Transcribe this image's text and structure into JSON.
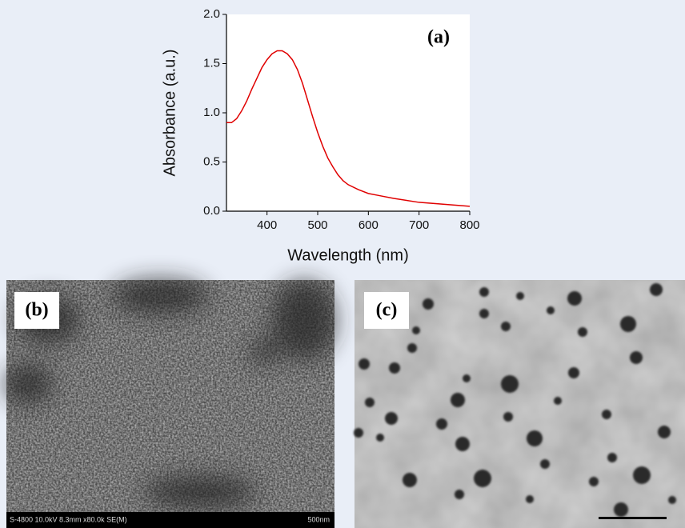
{
  "chart_data": {
    "type": "line",
    "xlabel": "Wavelength (nm)",
    "ylabel": "Absorbance (a.u.)",
    "annotation": "(a)",
    "x": [
      320,
      330,
      340,
      350,
      360,
      370,
      380,
      390,
      400,
      410,
      420,
      430,
      440,
      450,
      460,
      470,
      480,
      490,
      500,
      510,
      520,
      530,
      540,
      550,
      560,
      580,
      600,
      620,
      650,
      700,
      750,
      800
    ],
    "series": [
      {
        "color": "#e00000",
        "values": [
          0.9,
          0.9,
          0.94,
          1.02,
          1.12,
          1.24,
          1.35,
          1.46,
          1.54,
          1.6,
          1.63,
          1.63,
          1.6,
          1.54,
          1.44,
          1.3,
          1.13,
          0.96,
          0.8,
          0.66,
          0.54,
          0.45,
          0.37,
          0.31,
          0.27,
          0.22,
          0.18,
          0.16,
          0.13,
          0.09,
          0.07,
          0.05
        ]
      }
    ],
    "xlim": [
      320,
      800
    ],
    "xticks": [
      400,
      500,
      600,
      700,
      800
    ],
    "ylim": [
      0,
      2
    ],
    "yticks": [
      {
        "value": 0,
        "label": "0.0"
      },
      0.5,
      {
        "value": 1,
        "label": "1.0"
      },
      1.5,
      {
        "value": 2,
        "label": "2.0"
      }
    ]
  },
  "panels": [
    {
      "label": "(b)",
      "info": "S-4800 10.0kV 8.3mm x80.0k SE(M)",
      "scale": "500nm"
    },
    {
      "label": "(c)"
    }
  ]
}
